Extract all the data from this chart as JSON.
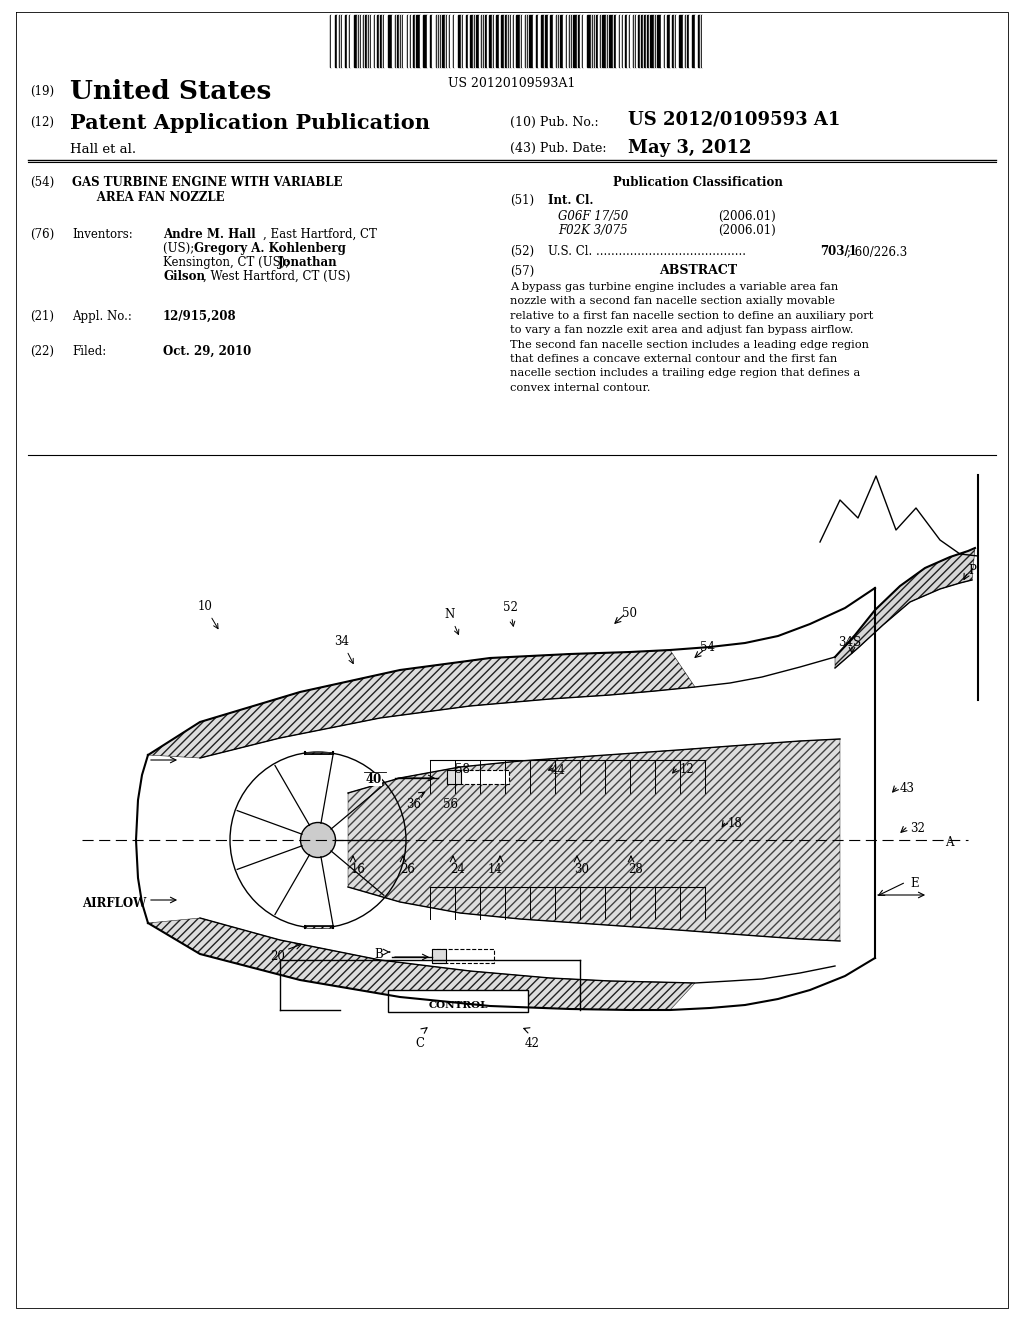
{
  "barcode_text": "US 20120109593A1",
  "country": "United States",
  "doc_type": "Patent Application Publication",
  "pub_number_label": "(10) Pub. No.:",
  "pub_number": "US 2012/0109593 A1",
  "pub_date_label": "(43) Pub. Date:",
  "pub_date": "May 3, 2012",
  "hall_label": "Hall et al.",
  "title_line1": "GAS TURBINE ENGINE WITH VARIABLE",
  "title_line2": "      AREA FAN NOZZLE",
  "pub_class_label": "Publication Classification",
  "int_cl_label": "Int. Cl.",
  "int_cl_1": "G06F 17/50",
  "int_cl_1_date": "(2006.01)",
  "int_cl_2": "F02K 3/075",
  "int_cl_2_date": "(2006.01)",
  "us_cl_dots": "U.S. Cl. ........................................",
  "us_cl_bold": "703/1",
  "us_cl_rest": "; 60/226.3",
  "abstract_title": "ABSTRACT",
  "abstract_text": "A bypass gas turbine engine includes a variable area fan\nnozzle with a second fan nacelle section axially movable\nrelative to a first fan nacelle section to define an auxiliary port\nto vary a fan nozzle exit area and adjust fan bypass airflow.\nThe second fan nacelle section includes a leading edge region\nthat defines a concave external contour and the first fan\nnacelle section includes a trailing edge region that defines a\nconvex internal contour.",
  "applicant_no": "12/915,208",
  "filed": "Oct. 29, 2010",
  "bg_color": "#ffffff",
  "text_color": "#000000"
}
